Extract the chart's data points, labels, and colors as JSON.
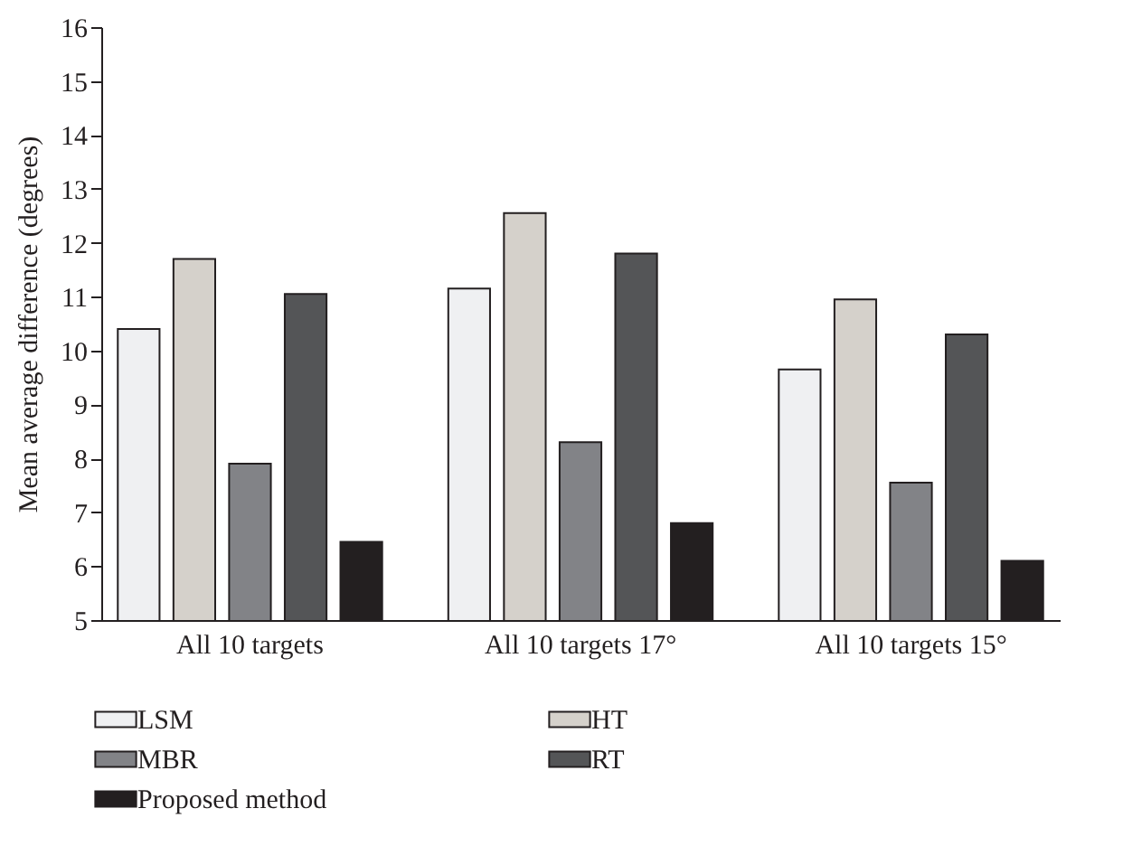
{
  "chart_data": {
    "type": "bar",
    "ylabel": "Mean average difference (degrees)",
    "categories": [
      "All 10 targets",
      "All 10 targets 17°",
      "All 10 targets 15°"
    ],
    "series": [
      {
        "name": "LSM",
        "color": "#eff0f2",
        "values": [
          10.4,
          11.15,
          9.65
        ]
      },
      {
        "name": "HT",
        "color": "#d5d1cb",
        "values": [
          11.7,
          12.55,
          10.95
        ]
      },
      {
        "name": "MBR",
        "color": "#828387",
        "values": [
          7.9,
          8.3,
          7.55
        ]
      },
      {
        "name": "RT",
        "color": "#545557",
        "values": [
          11.05,
          11.8,
          10.3
        ]
      },
      {
        "name": "Proposed method",
        "color": "#231f20",
        "values": [
          6.45,
          6.8,
          6.1
        ]
      }
    ],
    "ylim": [
      5,
      16
    ],
    "yticks": [
      5,
      6,
      7,
      8,
      9,
      10,
      11,
      12,
      13,
      14,
      15,
      16
    ],
    "grid": false,
    "legend": "bottom"
  }
}
